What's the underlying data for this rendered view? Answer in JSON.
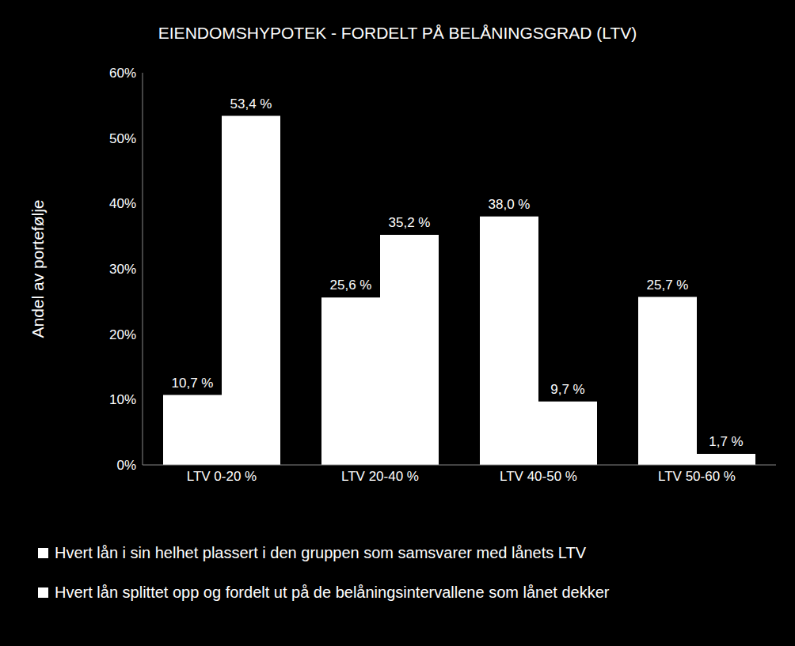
{
  "chart_data": {
    "type": "bar",
    "title": "EIENDOMSHYPOTEK - FORDELT PÅ BELÅNINGSGRAD (LTV)",
    "y_label": "Andel av portefølje",
    "categories": [
      "LTV 0-20 %",
      "LTV 20-40 %",
      "LTV 40-50 %",
      "LTV 50-60 %"
    ],
    "series": [
      {
        "name": "Hvert lån i sin helhet plassert i den gruppen som samsvarer med lånets LTV",
        "color": "#ffffff",
        "values": [
          10.7,
          25.6,
          38.0,
          25.7
        ],
        "value_labels": [
          "10,7 %",
          "25,6 %",
          "38,0 %",
          "25,7 %"
        ]
      },
      {
        "name": "Hvert lån splittet opp og fordelt ut på de belåningsintervallene som lånet dekker",
        "color": "#ffffff",
        "values": [
          53.4,
          35.2,
          9.7,
          1.7
        ],
        "value_labels": [
          "53,4 %",
          "35,2 %",
          "9,7 %",
          "1,7 %"
        ]
      }
    ],
    "ylim": [
      0,
      60
    ],
    "yticks": [
      {
        "value": 0,
        "label": "0%"
      },
      {
        "value": 10,
        "label": "10%"
      },
      {
        "value": 20,
        "label": "20%"
      },
      {
        "value": 30,
        "label": "30%"
      },
      {
        "value": 40,
        "label": "40%"
      },
      {
        "value": 50,
        "label": "50%"
      },
      {
        "value": 60,
        "label": "60%"
      }
    ],
    "grid": false,
    "data_labels": true
  }
}
